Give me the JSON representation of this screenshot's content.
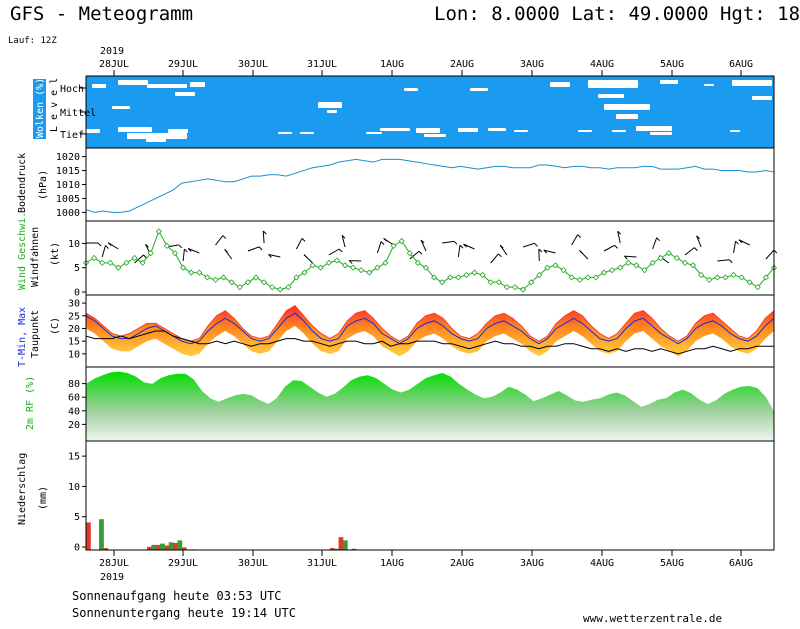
{
  "header": {
    "title": "GFS - Meteogramm",
    "location": "Lon: 8.0000  Lat: 49.0000  Hgt: 18",
    "run": "Lauf: 12Z"
  },
  "footer": {
    "sunrise": "Sonnenaufgang heute 03:53 UTC",
    "sunset": "Sonnenuntergang heute 19:14 UTC",
    "url": "www.wetterzentrale.de"
  },
  "days": [
    "28JUL",
    "29JUL",
    "30JUL",
    "31JUL",
    "1AUG",
    "2AUG",
    "3AUG",
    "4AUG",
    "5AUG",
    "6AUG"
  ],
  "year": "2019",
  "colors": {
    "cloud_bg": "#1a9bf0",
    "pressure": "#1a8fcf",
    "wind": "#22aa22",
    "tmax": "#ff3b2a",
    "tmin": "#1a2bd6",
    "rh": "#17d117",
    "precip_green": "#3a9a3a",
    "precip_red": "#dd3a2a"
  },
  "chart_data": [
    {
      "type": "heatmap",
      "name": "clouds",
      "ylabel": "Wolken (%)",
      "ylabel2": "L e v e l",
      "categories": [
        "Hoch",
        "Mittel",
        "Tief"
      ],
      "note": "cloud cover shown as blue (cloudy) with white gaps (clear)"
    },
    {
      "type": "line",
      "name": "pressure",
      "ylabel": "Bodendruck",
      "unit": "(hPa)",
      "yticks": [
        1000,
        1005,
        1010,
        1015,
        1020
      ],
      "ylim": [
        998,
        1022
      ],
      "values": [
        1001,
        1000,
        1000.5,
        1000,
        1000,
        1000.5,
        1002,
        1003.5,
        1005,
        1006.5,
        1008,
        1010.5,
        1011,
        1011.5,
        1012,
        1011.5,
        1011,
        1011,
        1012,
        1013,
        1013,
        1013.5,
        1013.5,
        1013,
        1014,
        1015,
        1016,
        1016.5,
        1017,
        1018,
        1018.5,
        1019,
        1018.5,
        1018,
        1019,
        1019,
        1019,
        1018.5,
        1018,
        1017.5,
        1017,
        1016.5,
        1016,
        1016.5,
        1016,
        1015.5,
        1016,
        1016.5,
        1016.5,
        1016,
        1016,
        1016,
        1017,
        1017,
        1016.5,
        1016,
        1016.5,
        1016.5,
        1016,
        1016,
        1015.5,
        1016,
        1016,
        1016,
        1016.5,
        1016.5,
        1015.5,
        1015.5,
        1015.5,
        1016,
        1016.5,
        1015.5,
        1015.5,
        1015,
        1015,
        1015,
        1014.5,
        1014.5,
        1015,
        1014.5
      ]
    },
    {
      "type": "line",
      "name": "wind",
      "ylabel": "Wind Geschwi.",
      "ylabel2": "Windfahnen",
      "unit": "(kt)",
      "yticks": [
        0,
        5,
        10
      ],
      "ylim": [
        0,
        14
      ],
      "values": [
        6,
        7,
        6,
        6,
        5,
        6,
        7,
        6,
        8,
        12.5,
        9.5,
        8,
        5,
        4,
        4,
        3,
        2.5,
        3,
        2,
        1,
        2,
        3,
        2,
        1,
        0.5,
        1,
        3,
        4,
        5.5,
        5,
        6,
        6.5,
        5.5,
        5,
        4.5,
        4,
        5,
        6,
        9.5,
        10.5,
        8,
        6,
        5,
        3,
        2,
        3,
        3,
        3.5,
        4,
        3.5,
        2,
        2,
        1,
        1,
        0.5,
        2,
        3.5,
        5,
        5.5,
        4.5,
        3,
        2.5,
        3,
        3,
        4,
        4.5,
        5,
        6,
        5.5,
        4.5,
        6,
        7,
        8,
        7,
        6,
        5.5,
        3.5,
        2.5,
        3,
        3,
        3.5,
        3,
        2,
        1,
        3,
        5
      ]
    },
    {
      "type": "area",
      "name": "temperature",
      "ylabel": "T-Min, Max",
      "ylabel2": "Taupunkt",
      "unit": "(C)",
      "yticks": [
        10,
        15,
        20,
        25,
        30
      ],
      "ylim": [
        6,
        32
      ],
      "tmax": [
        26,
        24,
        21,
        18,
        17,
        18,
        20,
        22,
        22,
        20,
        18,
        16,
        15,
        16,
        21,
        25,
        27,
        24,
        20,
        17,
        16,
        17,
        22,
        27,
        29,
        25,
        21,
        18,
        16,
        18,
        23,
        26,
        27,
        24,
        20,
        17,
        15,
        17,
        22,
        25,
        26,
        24,
        20,
        17,
        16,
        18,
        22,
        25,
        26,
        24,
        21,
        17,
        15,
        17,
        22,
        25,
        27,
        25,
        21,
        18,
        16,
        18,
        22,
        26,
        27,
        24,
        20,
        17,
        15,
        17,
        22,
        25,
        26,
        23,
        20,
        17,
        16,
        19,
        24,
        27
      ],
      "tmin": [
        25,
        23,
        20,
        17,
        16,
        16,
        18,
        20,
        21,
        19,
        17,
        15,
        14,
        15,
        19,
        22,
        24,
        22,
        19,
        16,
        15,
        16,
        20,
        24,
        26,
        23,
        19,
        16,
        15,
        16,
        21,
        23,
        24,
        22,
        18,
        16,
        14,
        16,
        20,
        22,
        23,
        21,
        18,
        16,
        15,
        16,
        20,
        22,
        23,
        21,
        19,
        16,
        14,
        16,
        20,
        22,
        24,
        22,
        19,
        16,
        15,
        16,
        20,
        23,
        24,
        21,
        18,
        16,
        14,
        16,
        20,
        22,
        23,
        21,
        18,
        16,
        15,
        17,
        21,
        24
      ],
      "dewpoint": [
        17,
        16,
        16,
        16,
        17,
        16,
        17,
        18,
        19,
        19,
        17,
        16,
        15,
        14,
        14,
        15,
        14,
        15,
        14,
        13,
        14,
        14,
        15,
        16,
        16,
        15,
        15,
        14,
        13,
        14,
        15,
        15,
        14,
        14,
        15,
        13,
        14,
        14,
        15,
        15,
        15,
        14,
        14,
        13,
        12,
        13,
        14,
        15,
        14,
        14,
        13,
        13,
        12,
        13,
        13,
        14,
        14,
        13,
        12,
        12,
        11,
        12,
        11,
        12,
        12,
        11,
        12,
        11,
        10,
        11,
        12,
        12,
        13,
        12,
        11,
        12,
        12,
        13,
        13,
        13
      ]
    },
    {
      "type": "area",
      "name": "humidity",
      "ylabel": "2m RF (%)",
      "yticks": [
        20,
        40,
        60,
        80
      ],
      "ylim": [
        0,
        100
      ],
      "values": [
        78,
        85,
        90,
        94,
        95,
        93,
        88,
        80,
        78,
        86,
        90,
        92,
        92,
        84,
        68,
        58,
        53,
        58,
        62,
        64,
        62,
        55,
        50,
        58,
        74,
        83,
        82,
        74,
        66,
        60,
        64,
        73,
        83,
        88,
        90,
        86,
        78,
        70,
        66,
        70,
        78,
        86,
        90,
        93,
        88,
        78,
        70,
        63,
        58,
        60,
        66,
        74,
        70,
        63,
        54,
        58,
        63,
        68,
        62,
        55,
        53,
        56,
        58,
        63,
        66,
        62,
        54,
        46,
        50,
        56,
        58,
        66,
        70,
        65,
        56,
        50,
        55,
        64,
        70,
        74,
        75,
        72,
        60,
        40
      ]
    },
    {
      "type": "bar",
      "name": "precipitation",
      "ylabel": "Niederschlag",
      "unit": "(mm)",
      "yticks": [
        0,
        5,
        10,
        15
      ],
      "ylim": [
        0,
        17
      ],
      "series": [
        {
          "name": "red",
          "values": [
            4.3,
            0,
            0.3,
            0,
            0,
            0,
            0,
            0.5,
            0.8,
            0.7,
            1.1,
            0.4,
            0.1,
            0,
            0,
            0,
            0,
            0,
            0,
            0,
            0,
            0,
            0,
            0,
            0,
            0,
            0,
            0,
            0.3,
            2,
            0,
            0,
            0,
            0,
            0,
            0,
            0,
            0,
            0,
            0,
            0,
            0,
            0,
            0,
            0,
            0,
            0,
            0,
            0,
            0,
            0,
            0,
            0,
            0,
            0,
            0,
            0,
            0,
            0,
            0,
            0,
            0,
            0,
            0,
            0,
            0,
            0,
            0,
            0,
            0,
            0,
            0,
            0,
            0,
            0,
            0,
            0,
            0,
            0
          ]
        },
        {
          "name": "green",
          "values": [
            0,
            4.8,
            0,
            0,
            0,
            0,
            0,
            0.8,
            1,
            1.2,
            1.5,
            0,
            0,
            0,
            0,
            0,
            0,
            0,
            0,
            0,
            0,
            0,
            0,
            0,
            0,
            0,
            0,
            0,
            0.2,
            1.5,
            0.2,
            0,
            0,
            0,
            0,
            0,
            0,
            0,
            0,
            0,
            0,
            0,
            0,
            0,
            0,
            0,
            0,
            0,
            0,
            0,
            0,
            0,
            0,
            0,
            0,
            0,
            0,
            0,
            0,
            0,
            0,
            0,
            0,
            0,
            0,
            0,
            0,
            0,
            0,
            0,
            0,
            0,
            0,
            0,
            0,
            0,
            0,
            0,
            0,
            0
          ]
        }
      ]
    }
  ]
}
